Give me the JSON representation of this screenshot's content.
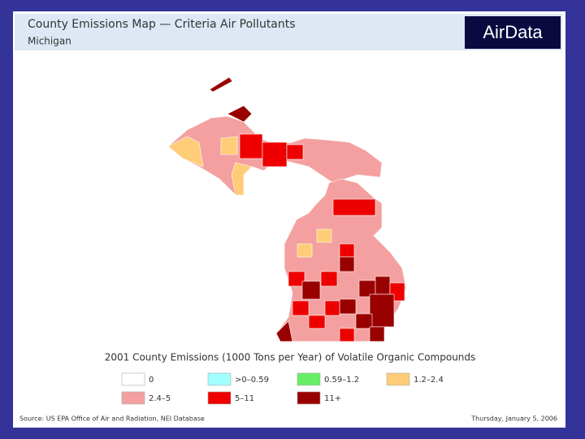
{
  "header": {
    "title": "County Emissions Map — Criteria Air Pollutants",
    "subtitle": "Michigan",
    "logo": "AirData"
  },
  "legend": {
    "title": "2001 County Emissions (1000 Tons per Year) of Volatile Organic Compounds",
    "items": [
      {
        "label": "0",
        "color": "#ffffff"
      },
      {
        "label": ">0–0.59",
        "color": "#a0ffff"
      },
      {
        "label": "0.59–1.2",
        "color": "#66ee66"
      },
      {
        "label": "1.2–2.4",
        "color": "#ffcc77"
      },
      {
        "label": "2.4–5",
        "color": "#f4a0a0"
      },
      {
        "label": "5–11",
        "color": "#ee0000"
      },
      {
        "label": "11+",
        "color": "#990000"
      }
    ]
  },
  "footer": {
    "source": "Source: US EPA Office of Air and Radiation, NEI Database",
    "date": "Thursday, January 5, 2006"
  }
}
